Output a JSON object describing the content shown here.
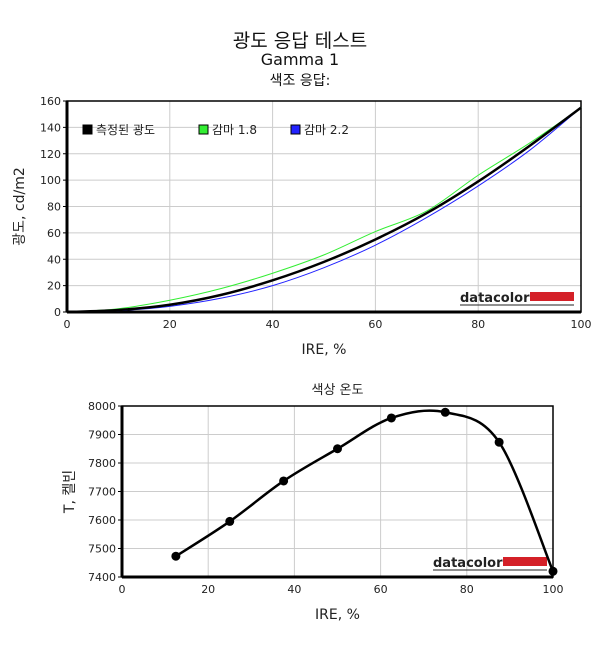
{
  "header": {
    "title": "광도 응답 테스트",
    "subtitle": "Gamma 1",
    "section": "색조 응답:"
  },
  "chart_data": [
    {
      "type": "line",
      "title": "색조 응답:",
      "xlabel": "IRE, %",
      "ylabel": "광도, cd/m2",
      "xlim": [
        0,
        100
      ],
      "ylim": [
        0,
        160
      ],
      "xticks": [
        0,
        20,
        40,
        60,
        80,
        100
      ],
      "yticks": [
        0,
        20,
        40,
        60,
        80,
        100,
        120,
        140,
        160
      ],
      "grid": true,
      "legend_position": "top-left",
      "watermark": "datacolor",
      "x": [
        0,
        10,
        20,
        30,
        40,
        50,
        60,
        70,
        80,
        90,
        100
      ],
      "series": [
        {
          "name": "측정된 광도",
          "color": "#000000",
          "values": [
            0,
            1.5,
            5.5,
            13,
            24,
            38,
            55,
            75,
            99,
            126,
            155
          ]
        },
        {
          "name": "감마 1.8",
          "color": "#33ee33",
          "values": [
            0,
            2.5,
            8.9,
            17.8,
            29.4,
            43.3,
            61,
            76.6,
            103.7,
            128.1,
            155
          ]
        },
        {
          "name": "감마 2.2",
          "color": "#2222ff",
          "values": [
            0,
            1,
            4.3,
            10.5,
            20,
            33.6,
            50.7,
            71.7,
            95.6,
            122.6,
            155
          ]
        }
      ]
    },
    {
      "type": "line",
      "title": "색상 온도",
      "xlabel": "IRE, %",
      "ylabel": "T, 켈빈",
      "xlim": [
        0,
        100
      ],
      "ylim": [
        7400,
        8000
      ],
      "xticks": [
        0,
        20,
        40,
        60,
        80,
        100
      ],
      "yticks": [
        7400,
        7500,
        7600,
        7700,
        7800,
        7900,
        8000
      ],
      "grid": true,
      "watermark": "datacolor",
      "x": [
        12.5,
        25,
        37.5,
        50,
        62.5,
        75,
        87.5,
        100
      ],
      "series": [
        {
          "name": "색상 온도",
          "color": "#000000",
          "values": [
            7473,
            7595,
            7737,
            7850,
            7958,
            7978,
            7873,
            7420
          ]
        }
      ]
    }
  ]
}
